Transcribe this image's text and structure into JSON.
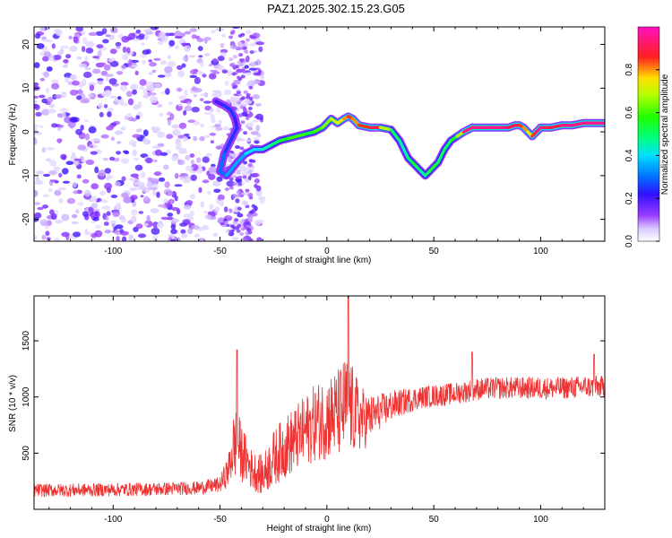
{
  "title": "PAZ1.2025.302.15.23.G05",
  "chart_data": [
    {
      "type": "heatmap",
      "title": "PAZ1.2025.302.15.23.G05",
      "xlabel": "Height of straight line (km)",
      "ylabel": "Frequency (Hz)",
      "xlim": [
        -137,
        130
      ],
      "ylim": [
        -25,
        24
      ],
      "xticks": [
        -100,
        -50,
        0,
        50,
        100
      ],
      "yticks": [
        -20,
        -10,
        0,
        10,
        20
      ],
      "xtick_labels": [
        "-100",
        "-50",
        "0",
        "50",
        "100"
      ],
      "ytick_labels": [
        "-20",
        "-10",
        "0",
        "10",
        "20"
      ],
      "colorbar": {
        "label": "Normalized spectral amplitude",
        "range": [
          0,
          1
        ],
        "ticks": [
          0.0,
          0.2,
          0.4,
          0.6,
          0.8
        ],
        "tick_labels": [
          "0.0",
          "0.2",
          "0.4",
          "0.6",
          "0.8"
        ],
        "colormap": "gist_ncar-like (white-purple-blue-cyan-green-yellow-red-magenta)"
      },
      "noise_region_km": [
        -137,
        -30
      ],
      "signal_ridge": {
        "x": [
          -52,
          -48,
          -45,
          -43,
          -42,
          -44,
          -46,
          -48,
          -50,
          -47,
          -42,
          -38,
          -34,
          -30,
          -26,
          -22,
          -18,
          -14,
          -10,
          -6,
          -2,
          2,
          5,
          8,
          10,
          12,
          15,
          20,
          25,
          30,
          34,
          36,
          38,
          40,
          42,
          44,
          46,
          48,
          50,
          52,
          55,
          58,
          61,
          64,
          68,
          75,
          80,
          85,
          88,
          90,
          92,
          94,
          96,
          98,
          100,
          102,
          105,
          110,
          115,
          120,
          125,
          130
        ],
        "freq": [
          7,
          6,
          5,
          3,
          1,
          -1,
          -3,
          -5,
          -9,
          -10,
          -7,
          -5,
          -4,
          -4,
          -3,
          -2,
          -1.5,
          -1,
          -0.5,
          0,
          1,
          3,
          2,
          3,
          3.5,
          3,
          1.5,
          1,
          1,
          0.5,
          -2,
          -4,
          -6,
          -7,
          -8,
          -9,
          -10,
          -9,
          -8,
          -7,
          -4,
          -2,
          -1,
          0,
          1,
          1,
          1,
          1,
          1.5,
          1.5,
          1,
          0,
          -1,
          0,
          1,
          1,
          1,
          1.5,
          1.5,
          2,
          2,
          2
        ],
        "amplitude": [
          0.2,
          0.2,
          0.25,
          0.25,
          0.2,
          0.25,
          0.25,
          0.25,
          0.3,
          0.3,
          0.35,
          0.35,
          0.4,
          0.4,
          0.45,
          0.5,
          0.55,
          0.6,
          0.6,
          0.55,
          0.6,
          0.65,
          0.7,
          0.75,
          0.8,
          0.85,
          0.8,
          0.85,
          0.9,
          0.7,
          0.5,
          0.45,
          0.45,
          0.5,
          0.55,
          0.5,
          0.45,
          0.5,
          0.55,
          0.55,
          0.5,
          0.5,
          0.55,
          0.7,
          0.95,
          0.95,
          0.95,
          0.95,
          0.9,
          0.9,
          0.85,
          0.8,
          0.75,
          0.85,
          0.95,
          0.95,
          0.9,
          0.9,
          0.95,
          0.95,
          0.95,
          0.95
        ]
      }
    },
    {
      "type": "line",
      "xlabel": "Height of straight line (km)",
      "ylabel": "SNR (10 * v/v)",
      "xlim": [
        -137,
        130
      ],
      "ylim": [
        0,
        1900
      ],
      "xticks": [
        -100,
        -50,
        0,
        50,
        100
      ],
      "yticks": [
        500,
        1000,
        1500
      ],
      "xtick_labels": [
        "-100",
        "-50",
        "0",
        "50",
        "100"
      ],
      "ytick_labels": [
        "500",
        "1000",
        "1500"
      ],
      "color": "#ee3333",
      "envelope": {
        "x": [
          -137,
          -120,
          -100,
          -80,
          -60,
          -50,
          -46,
          -44,
          -42,
          -40,
          -38,
          -35,
          -30,
          -25,
          -20,
          -15,
          -10,
          -5,
          0,
          5,
          8,
          10,
          12,
          15,
          18,
          20,
          25,
          30,
          35,
          40,
          45,
          50,
          55,
          60,
          65,
          70,
          80,
          90,
          100,
          110,
          120,
          130
        ],
        "mean": [
          170,
          170,
          175,
          180,
          190,
          220,
          350,
          550,
          600,
          500,
          450,
          350,
          300,
          450,
          550,
          620,
          700,
          780,
          820,
          850,
          900,
          950,
          880,
          820,
          800,
          820,
          870,
          920,
          950,
          980,
          1000,
          1010,
          1020,
          1030,
          1050,
          1070,
          1080,
          1080,
          1080,
          1080,
          1090,
          1090
        ],
        "spread": [
          60,
          60,
          60,
          60,
          60,
          70,
          150,
          300,
          320,
          260,
          220,
          180,
          180,
          250,
          280,
          300,
          320,
          350,
          380,
          400,
          450,
          480,
          400,
          320,
          260,
          200,
          160,
          140,
          120,
          110,
          100,
          100,
          100,
          100,
          100,
          100,
          100,
          100,
          100,
          100,
          100,
          100
        ]
      },
      "peaks": [
        {
          "x": 10,
          "y": 1900
        },
        {
          "x": -42,
          "y": 1420
        },
        {
          "x": 68,
          "y": 1400
        },
        {
          "x": 125,
          "y": 1380
        }
      ]
    }
  ],
  "colors": {
    "snr_line": "#ee3333",
    "axis": "#000000",
    "background": "#ffffff"
  }
}
